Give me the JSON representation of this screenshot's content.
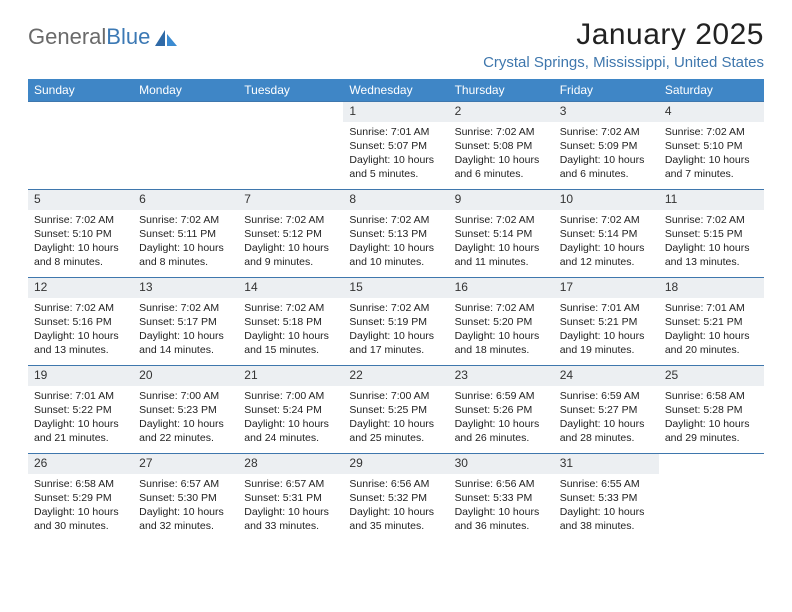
{
  "brand": {
    "part1": "General",
    "part2": "Blue"
  },
  "title": "January 2025",
  "location": "Crystal Springs, Mississippi, United States",
  "colors": {
    "header_bg": "#3f86c6",
    "header_text": "#ffffff",
    "daynum_bg": "#eceff2",
    "rule": "#3f77ad",
    "location_text": "#3f77ad",
    "logo_gray": "#6a6a6a",
    "logo_blue": "#3c79b4"
  },
  "dayHeaders": [
    "Sunday",
    "Monday",
    "Tuesday",
    "Wednesday",
    "Thursday",
    "Friday",
    "Saturday"
  ],
  "weeks": [
    [
      null,
      null,
      null,
      {
        "n": "1",
        "sr": "7:01 AM",
        "ss": "5:07 PM",
        "dl": "10 hours and 5 minutes."
      },
      {
        "n": "2",
        "sr": "7:02 AM",
        "ss": "5:08 PM",
        "dl": "10 hours and 6 minutes."
      },
      {
        "n": "3",
        "sr": "7:02 AM",
        "ss": "5:09 PM",
        "dl": "10 hours and 6 minutes."
      },
      {
        "n": "4",
        "sr": "7:02 AM",
        "ss": "5:10 PM",
        "dl": "10 hours and 7 minutes."
      }
    ],
    [
      {
        "n": "5",
        "sr": "7:02 AM",
        "ss": "5:10 PM",
        "dl": "10 hours and 8 minutes."
      },
      {
        "n": "6",
        "sr": "7:02 AM",
        "ss": "5:11 PM",
        "dl": "10 hours and 8 minutes."
      },
      {
        "n": "7",
        "sr": "7:02 AM",
        "ss": "5:12 PM",
        "dl": "10 hours and 9 minutes."
      },
      {
        "n": "8",
        "sr": "7:02 AM",
        "ss": "5:13 PM",
        "dl": "10 hours and 10 minutes."
      },
      {
        "n": "9",
        "sr": "7:02 AM",
        "ss": "5:14 PM",
        "dl": "10 hours and 11 minutes."
      },
      {
        "n": "10",
        "sr": "7:02 AM",
        "ss": "5:14 PM",
        "dl": "10 hours and 12 minutes."
      },
      {
        "n": "11",
        "sr": "7:02 AM",
        "ss": "5:15 PM",
        "dl": "10 hours and 13 minutes."
      }
    ],
    [
      {
        "n": "12",
        "sr": "7:02 AM",
        "ss": "5:16 PM",
        "dl": "10 hours and 13 minutes."
      },
      {
        "n": "13",
        "sr": "7:02 AM",
        "ss": "5:17 PM",
        "dl": "10 hours and 14 minutes."
      },
      {
        "n": "14",
        "sr": "7:02 AM",
        "ss": "5:18 PM",
        "dl": "10 hours and 15 minutes."
      },
      {
        "n": "15",
        "sr": "7:02 AM",
        "ss": "5:19 PM",
        "dl": "10 hours and 17 minutes."
      },
      {
        "n": "16",
        "sr": "7:02 AM",
        "ss": "5:20 PM",
        "dl": "10 hours and 18 minutes."
      },
      {
        "n": "17",
        "sr": "7:01 AM",
        "ss": "5:21 PM",
        "dl": "10 hours and 19 minutes."
      },
      {
        "n": "18",
        "sr": "7:01 AM",
        "ss": "5:21 PM",
        "dl": "10 hours and 20 minutes."
      }
    ],
    [
      {
        "n": "19",
        "sr": "7:01 AM",
        "ss": "5:22 PM",
        "dl": "10 hours and 21 minutes."
      },
      {
        "n": "20",
        "sr": "7:00 AM",
        "ss": "5:23 PM",
        "dl": "10 hours and 22 minutes."
      },
      {
        "n": "21",
        "sr": "7:00 AM",
        "ss": "5:24 PM",
        "dl": "10 hours and 24 minutes."
      },
      {
        "n": "22",
        "sr": "7:00 AM",
        "ss": "5:25 PM",
        "dl": "10 hours and 25 minutes."
      },
      {
        "n": "23",
        "sr": "6:59 AM",
        "ss": "5:26 PM",
        "dl": "10 hours and 26 minutes."
      },
      {
        "n": "24",
        "sr": "6:59 AM",
        "ss": "5:27 PM",
        "dl": "10 hours and 28 minutes."
      },
      {
        "n": "25",
        "sr": "6:58 AM",
        "ss": "5:28 PM",
        "dl": "10 hours and 29 minutes."
      }
    ],
    [
      {
        "n": "26",
        "sr": "6:58 AM",
        "ss": "5:29 PM",
        "dl": "10 hours and 30 minutes."
      },
      {
        "n": "27",
        "sr": "6:57 AM",
        "ss": "5:30 PM",
        "dl": "10 hours and 32 minutes."
      },
      {
        "n": "28",
        "sr": "6:57 AM",
        "ss": "5:31 PM",
        "dl": "10 hours and 33 minutes."
      },
      {
        "n": "29",
        "sr": "6:56 AM",
        "ss": "5:32 PM",
        "dl": "10 hours and 35 minutes."
      },
      {
        "n": "30",
        "sr": "6:56 AM",
        "ss": "5:33 PM",
        "dl": "10 hours and 36 minutes."
      },
      {
        "n": "31",
        "sr": "6:55 AM",
        "ss": "5:33 PM",
        "dl": "10 hours and 38 minutes."
      },
      null
    ]
  ],
  "labels": {
    "sunrise": "Sunrise: ",
    "sunset": "Sunset: ",
    "daylight": "Daylight: "
  }
}
